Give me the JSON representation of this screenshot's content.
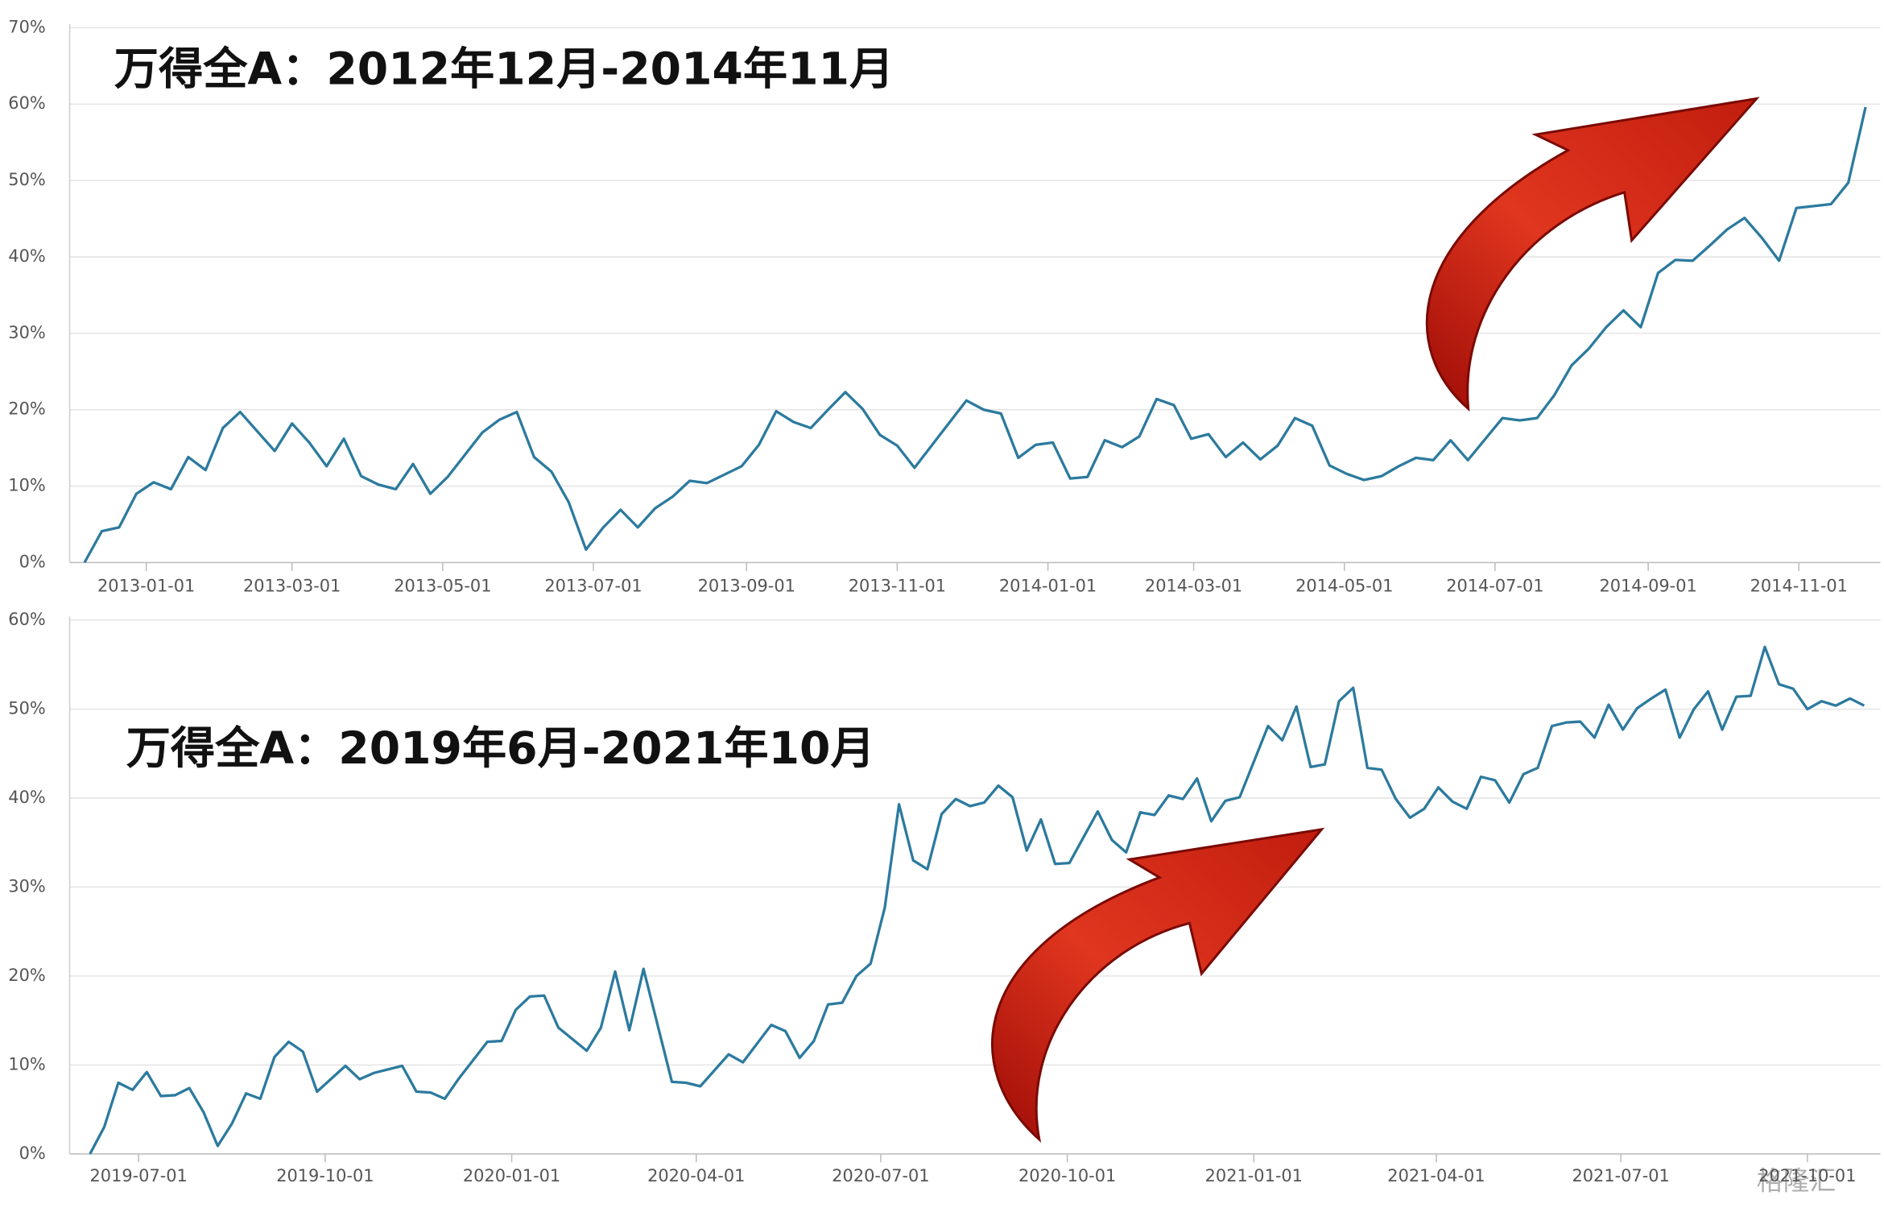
{
  "chart_data": [
    {
      "type": "line",
      "title": "万得全A：2012年12月-2014年11月",
      "color": "#2c7a9e",
      "grid": true,
      "xlim": [
        "2012-12-01",
        "2014-12-04"
      ],
      "xticks": [
        "2013-01-01",
        "2013-03-01",
        "2013-05-01",
        "2013-07-01",
        "2013-09-01",
        "2013-11-01",
        "2014-01-01",
        "2014-03-01",
        "2014-05-01",
        "2014-07-01",
        "2014-09-01",
        "2014-11-01"
      ],
      "ylim": [
        0,
        70
      ],
      "yticks": [
        {
          "value": 0,
          "label": "0%"
        },
        {
          "value": 10,
          "label": "10%"
        },
        {
          "value": 20,
          "label": "20%"
        },
        {
          "value": 30,
          "label": "30%"
        },
        {
          "value": 40,
          "label": "40%"
        },
        {
          "value": 50,
          "label": "50%"
        },
        {
          "value": 60,
          "label": "60%"
        },
        {
          "value": 70,
          "label": "70%"
        }
      ],
      "x": [
        "2012-12-07",
        "2012-12-14",
        "2012-12-21",
        "2012-12-28",
        "2013-01-04",
        "2013-01-11",
        "2013-01-18",
        "2013-01-25",
        "2013-02-01",
        "2013-02-08",
        "2013-02-22",
        "2013-03-01",
        "2013-03-08",
        "2013-03-15",
        "2013-03-22",
        "2013-03-29",
        "2013-04-05",
        "2013-04-12",
        "2013-04-19",
        "2013-04-26",
        "2013-05-03",
        "2013-05-17",
        "2013-05-24",
        "2013-05-31",
        "2013-06-07",
        "2013-06-14",
        "2013-06-21",
        "2013-06-28",
        "2013-07-05",
        "2013-07-12",
        "2013-07-19",
        "2013-07-26",
        "2013-08-02",
        "2013-08-09",
        "2013-08-16",
        "2013-08-30",
        "2013-09-06",
        "2013-09-13",
        "2013-09-20",
        "2013-09-27",
        "2013-10-04",
        "2013-10-11",
        "2013-10-18",
        "2013-10-25",
        "2013-11-01",
        "2013-11-08",
        "2013-11-29",
        "2013-12-06",
        "2013-12-13",
        "2013-12-20",
        "2013-12-27",
        "2014-01-03",
        "2014-01-10",
        "2014-01-17",
        "2014-01-24",
        "2014-01-31",
        "2014-02-07",
        "2014-02-14",
        "2014-02-21",
        "2014-02-28",
        "2014-03-07",
        "2014-03-14",
        "2014-03-21",
        "2014-03-28",
        "2014-04-04",
        "2014-04-11",
        "2014-04-18",
        "2014-04-25",
        "2014-05-02",
        "2014-05-09",
        "2014-05-16",
        "2014-05-23",
        "2014-05-30",
        "2014-06-06",
        "2014-06-13",
        "2014-06-20",
        "2014-07-04",
        "2014-07-11",
        "2014-07-18",
        "2014-07-25",
        "2014-08-01",
        "2014-08-08",
        "2014-08-15",
        "2014-08-22",
        "2014-08-29",
        "2014-09-05",
        "2014-09-12",
        "2014-09-19",
        "2014-09-26",
        "2014-10-03",
        "2014-10-10",
        "2014-10-17",
        "2014-10-24",
        "2014-10-31",
        "2014-11-14",
        "2014-11-21",
        "2014-11-28"
      ],
      "values": [
        0,
        4.1,
        4.6,
        9.0,
        10.5,
        9.6,
        13.8,
        12.1,
        17.6,
        19.7,
        14.6,
        18.2,
        15.7,
        12.6,
        16.2,
        11.3,
        10.2,
        9.6,
        12.9,
        9.0,
        11.2,
        17.0,
        18.7,
        19.7,
        13.8,
        11.9,
        7.9,
        1.7,
        4.6,
        6.9,
        4.6,
        7.1,
        8.6,
        10.7,
        10.4,
        12.6,
        15.4,
        19.8,
        18.4,
        17.6,
        20.0,
        22.3,
        20.1,
        16.7,
        15.3,
        12.4,
        21.2,
        20.0,
        19.5,
        13.7,
        15.4,
        15.7,
        11.0,
        11.2,
        16.0,
        15.1,
        16.5,
        21.4,
        20.6,
        16.2,
        16.8,
        13.8,
        15.7,
        13.5,
        15.3,
        18.9,
        17.9,
        12.7,
        11.6,
        10.8,
        11.3,
        12.6,
        13.7,
        13.4,
        16.0,
        13.4,
        18.9,
        18.6,
        18.9,
        21.9,
        25.8,
        28.0,
        30.8,
        33.0,
        30.8,
        37.9,
        39.6,
        39.5,
        41.5,
        43.6,
        45.1,
        42.5,
        39.5,
        46.4,
        46.9,
        49.7,
        59.6
      ]
    },
    {
      "type": "line",
      "title": "万得全A：2019年6月-2021年10月",
      "color": "#2c7a9e",
      "grid": true,
      "xlim": [
        "2019-05-28",
        "2021-11-06"
      ],
      "xticks": [
        "2019-07-01",
        "2019-10-01",
        "2020-01-01",
        "2020-04-01",
        "2020-07-01",
        "2020-10-01",
        "2021-01-01",
        "2021-04-01",
        "2021-07-01",
        "2021-10-01"
      ],
      "ylim": [
        0,
        60
      ],
      "yticks": [
        {
          "value": 0,
          "label": "0%"
        },
        {
          "value": 10,
          "label": "10%"
        },
        {
          "value": 20,
          "label": "20%"
        },
        {
          "value": 30,
          "label": "30%"
        },
        {
          "value": 40,
          "label": "40%"
        },
        {
          "value": 50,
          "label": "50%"
        },
        {
          "value": 60,
          "label": "60%"
        }
      ],
      "x": [
        "2019-06-07",
        "2019-06-14",
        "2019-06-21",
        "2019-06-28",
        "2019-07-05",
        "2019-07-12",
        "2019-07-19",
        "2019-07-26",
        "2019-08-02",
        "2019-08-09",
        "2019-08-16",
        "2019-08-23",
        "2019-08-30",
        "2019-09-06",
        "2019-09-13",
        "2019-09-20",
        "2019-09-27",
        "2019-10-11",
        "2019-10-18",
        "2019-10-25",
        "2019-11-08",
        "2019-11-15",
        "2019-11-22",
        "2019-11-29",
        "2019-12-06",
        "2019-12-20",
        "2019-12-27",
        "2020-01-03",
        "2020-01-10",
        "2020-01-17",
        "2020-01-24",
        "2020-02-07",
        "2020-02-14",
        "2020-02-21",
        "2020-02-28",
        "2020-03-06",
        "2020-03-20",
        "2020-03-27",
        "2020-04-03",
        "2020-04-17",
        "2020-04-24",
        "2020-05-08",
        "2020-05-15",
        "2020-05-22",
        "2020-05-29",
        "2020-06-05",
        "2020-06-12",
        "2020-06-19",
        "2020-06-26",
        "2020-07-03",
        "2020-07-10",
        "2020-07-17",
        "2020-07-24",
        "2020-07-31",
        "2020-08-07",
        "2020-08-14",
        "2020-08-21",
        "2020-08-28",
        "2020-09-04",
        "2020-09-11",
        "2020-09-18",
        "2020-09-25",
        "2020-10-02",
        "2020-10-16",
        "2020-10-23",
        "2020-10-30",
        "2020-11-06",
        "2020-11-13",
        "2020-11-20",
        "2020-11-27",
        "2020-12-04",
        "2020-12-11",
        "2020-12-18",
        "2020-12-25",
        "2021-01-08",
        "2021-01-15",
        "2021-01-22",
        "2021-01-29",
        "2021-02-05",
        "2021-02-12",
        "2021-02-19",
        "2021-02-26",
        "2021-03-05",
        "2021-03-12",
        "2021-03-19",
        "2021-03-26",
        "2021-04-02",
        "2021-04-09",
        "2021-04-16",
        "2021-04-23",
        "2021-04-30",
        "2021-05-07",
        "2021-05-14",
        "2021-05-21",
        "2021-05-28",
        "2021-06-04",
        "2021-06-11",
        "2021-06-18",
        "2021-06-25",
        "2021-07-02",
        "2021-07-09",
        "2021-07-16",
        "2021-07-23",
        "2021-07-30",
        "2021-08-06",
        "2021-08-13",
        "2021-08-20",
        "2021-08-27",
        "2021-09-03",
        "2021-09-10",
        "2021-09-17",
        "2021-09-24",
        "2021-10-01",
        "2021-10-08",
        "2021-10-15",
        "2021-10-22",
        "2021-10-29"
      ],
      "values": [
        0,
        3.0,
        8.0,
        7.2,
        9.2,
        6.5,
        6.6,
        7.4,
        4.7,
        0.9,
        3.4,
        6.8,
        6.2,
        10.9,
        12.6,
        11.5,
        7.0,
        9.9,
        8.4,
        9.1,
        9.9,
        7.0,
        6.9,
        6.2,
        8.5,
        12.6,
        12.7,
        16.2,
        17.7,
        17.8,
        14.2,
        11.6,
        14.2,
        20.5,
        13.9,
        20.8,
        8.1,
        8.0,
        7.6,
        11.2,
        10.3,
        14.5,
        13.8,
        10.8,
        12.7,
        16.8,
        17.0,
        20.0,
        21.4,
        27.7,
        39.3,
        33.0,
        32.0,
        38.2,
        39.9,
        39.1,
        39.5,
        41.4,
        40.1,
        34.1,
        37.6,
        32.6,
        32.7,
        38.5,
        35.3,
        33.9,
        38.4,
        38.1,
        40.3,
        39.9,
        42.2,
        37.4,
        39.7,
        40.1,
        48.1,
        46.5,
        50.3,
        43.5,
        43.8,
        50.9,
        52.4,
        43.4,
        43.2,
        39.9,
        37.8,
        38.8,
        41.2,
        39.6,
        38.8,
        42.4,
        42.0,
        39.5,
        42.7,
        43.4,
        48.1,
        48.5,
        48.6,
        46.8,
        50.5,
        47.7,
        50.1,
        51.2,
        52.2,
        46.8,
        50.0,
        52.0,
        47.7,
        51.4,
        51.5,
        57.0,
        52.8,
        52.3,
        50.0,
        50.9,
        50.4,
        51.2,
        50.4
      ]
    }
  ],
  "watermark": "格隆汇"
}
